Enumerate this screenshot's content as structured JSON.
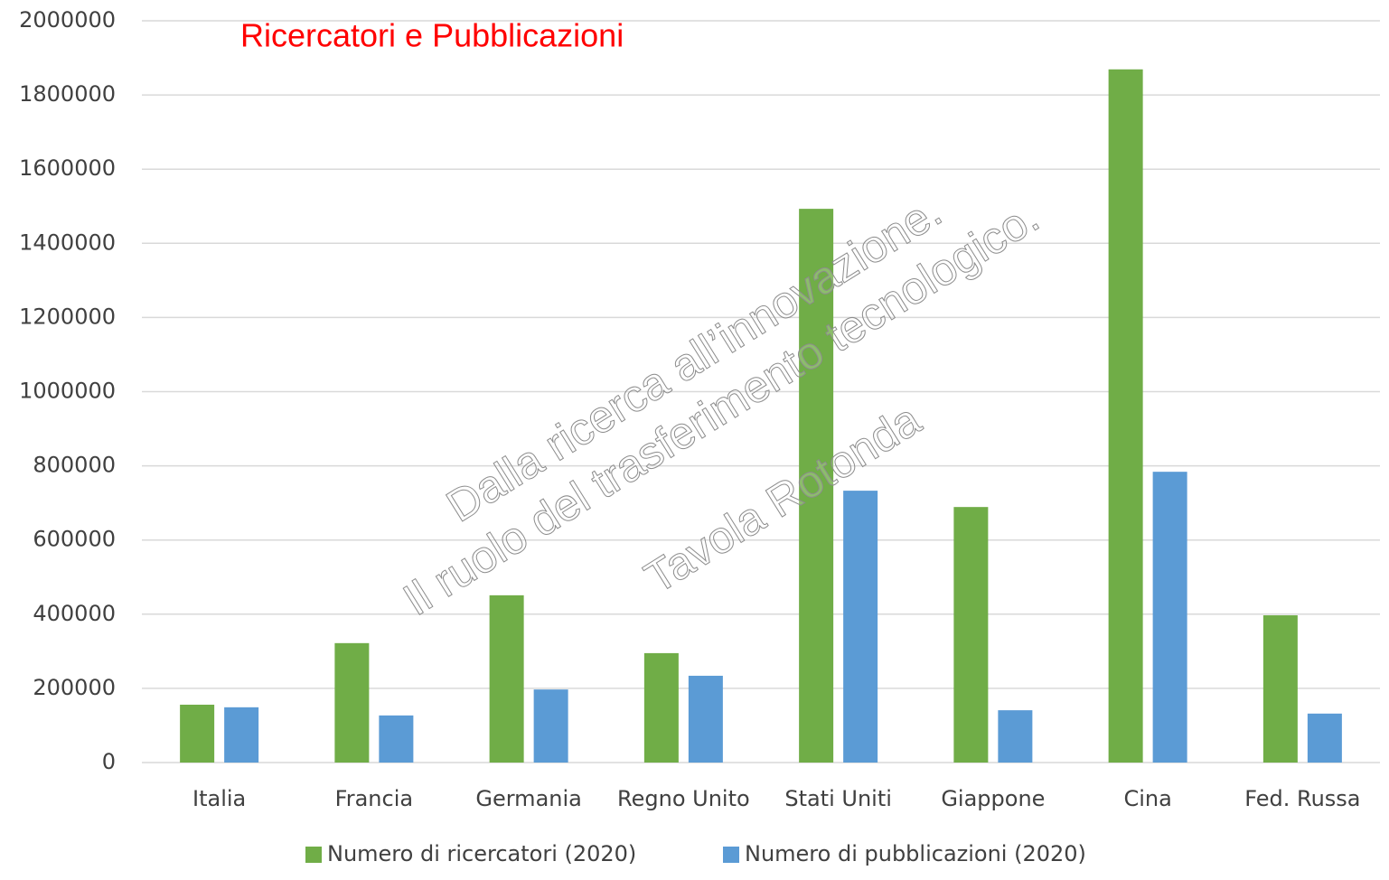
{
  "chart_data": {
    "type": "bar",
    "title": "Ricercatori e Pubblicazioni",
    "categories": [
      "Italia",
      "Francia",
      "Germania",
      "Regno Unito",
      "Stati Uniti",
      "Giappone",
      "Cina",
      "Fed. Russa"
    ],
    "series": [
      {
        "name": "Numero di ricercatori (2020)",
        "color": "#70ad47",
        "values": [
          156000,
          322000,
          451000,
          295000,
          1493000,
          689000,
          1869000,
          397000
        ]
      },
      {
        "name": "Numero di pubblicazioni (2020)",
        "color": "#5b9bd5",
        "values": [
          149000,
          127000,
          197000,
          234000,
          733000,
          141000,
          784000,
          132000
        ]
      }
    ],
    "ylim": [
      0,
      2000000
    ],
    "yticks": [
      0,
      200000,
      400000,
      600000,
      800000,
      1000000,
      1200000,
      1400000,
      1600000,
      1800000,
      2000000
    ],
    "grid": true,
    "legend": "bottom",
    "annotations": [
      "Dalla ricerca all’innovazione.",
      "Il ruolo del trasferimento tecnologico.",
      "Tavola Rotonda"
    ]
  }
}
